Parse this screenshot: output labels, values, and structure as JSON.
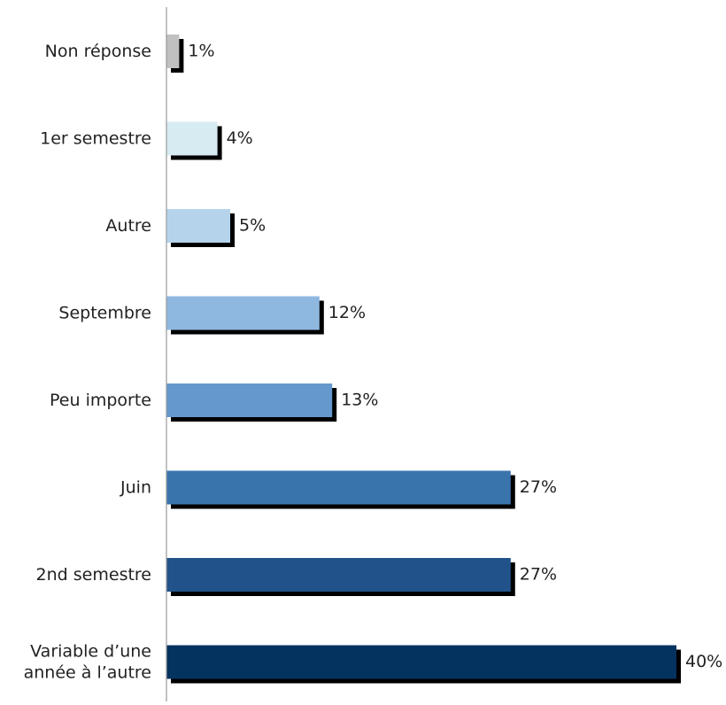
{
  "chart_data": {
    "type": "bar",
    "orientation": "horizontal",
    "categories": [
      "Non réponse",
      "1er semestre",
      "Autre",
      "Septembre",
      "Peu importe",
      "Juin",
      "2nd semestre",
      "Variable d’une année à l’autre"
    ],
    "category_lines": [
      [
        "Non réponse"
      ],
      [
        "1er semestre"
      ],
      [
        "Autre"
      ],
      [
        "Septembre"
      ],
      [
        "Peu importe"
      ],
      [
        "Juin"
      ],
      [
        "2nd semestre"
      ],
      [
        "Variable d’une",
        "année à l’autre"
      ]
    ],
    "values": [
      1,
      4,
      5,
      12,
      13,
      27,
      27,
      40
    ],
    "value_labels": [
      "1%",
      "4%",
      "5%",
      "12%",
      "13%",
      "27%",
      "27%",
      "40%"
    ],
    "colors": [
      "#c0c0c0",
      "#d6ebf2",
      "#b5d4ec",
      "#8fb8e0",
      "#6598cc",
      "#3a74ad",
      "#21538a",
      "#053360"
    ],
    "shadow_color": "#000000",
    "xlim": [
      0,
      40
    ],
    "grid": false,
    "legend": false,
    "title": "",
    "xlabel": "",
    "ylabel": ""
  }
}
